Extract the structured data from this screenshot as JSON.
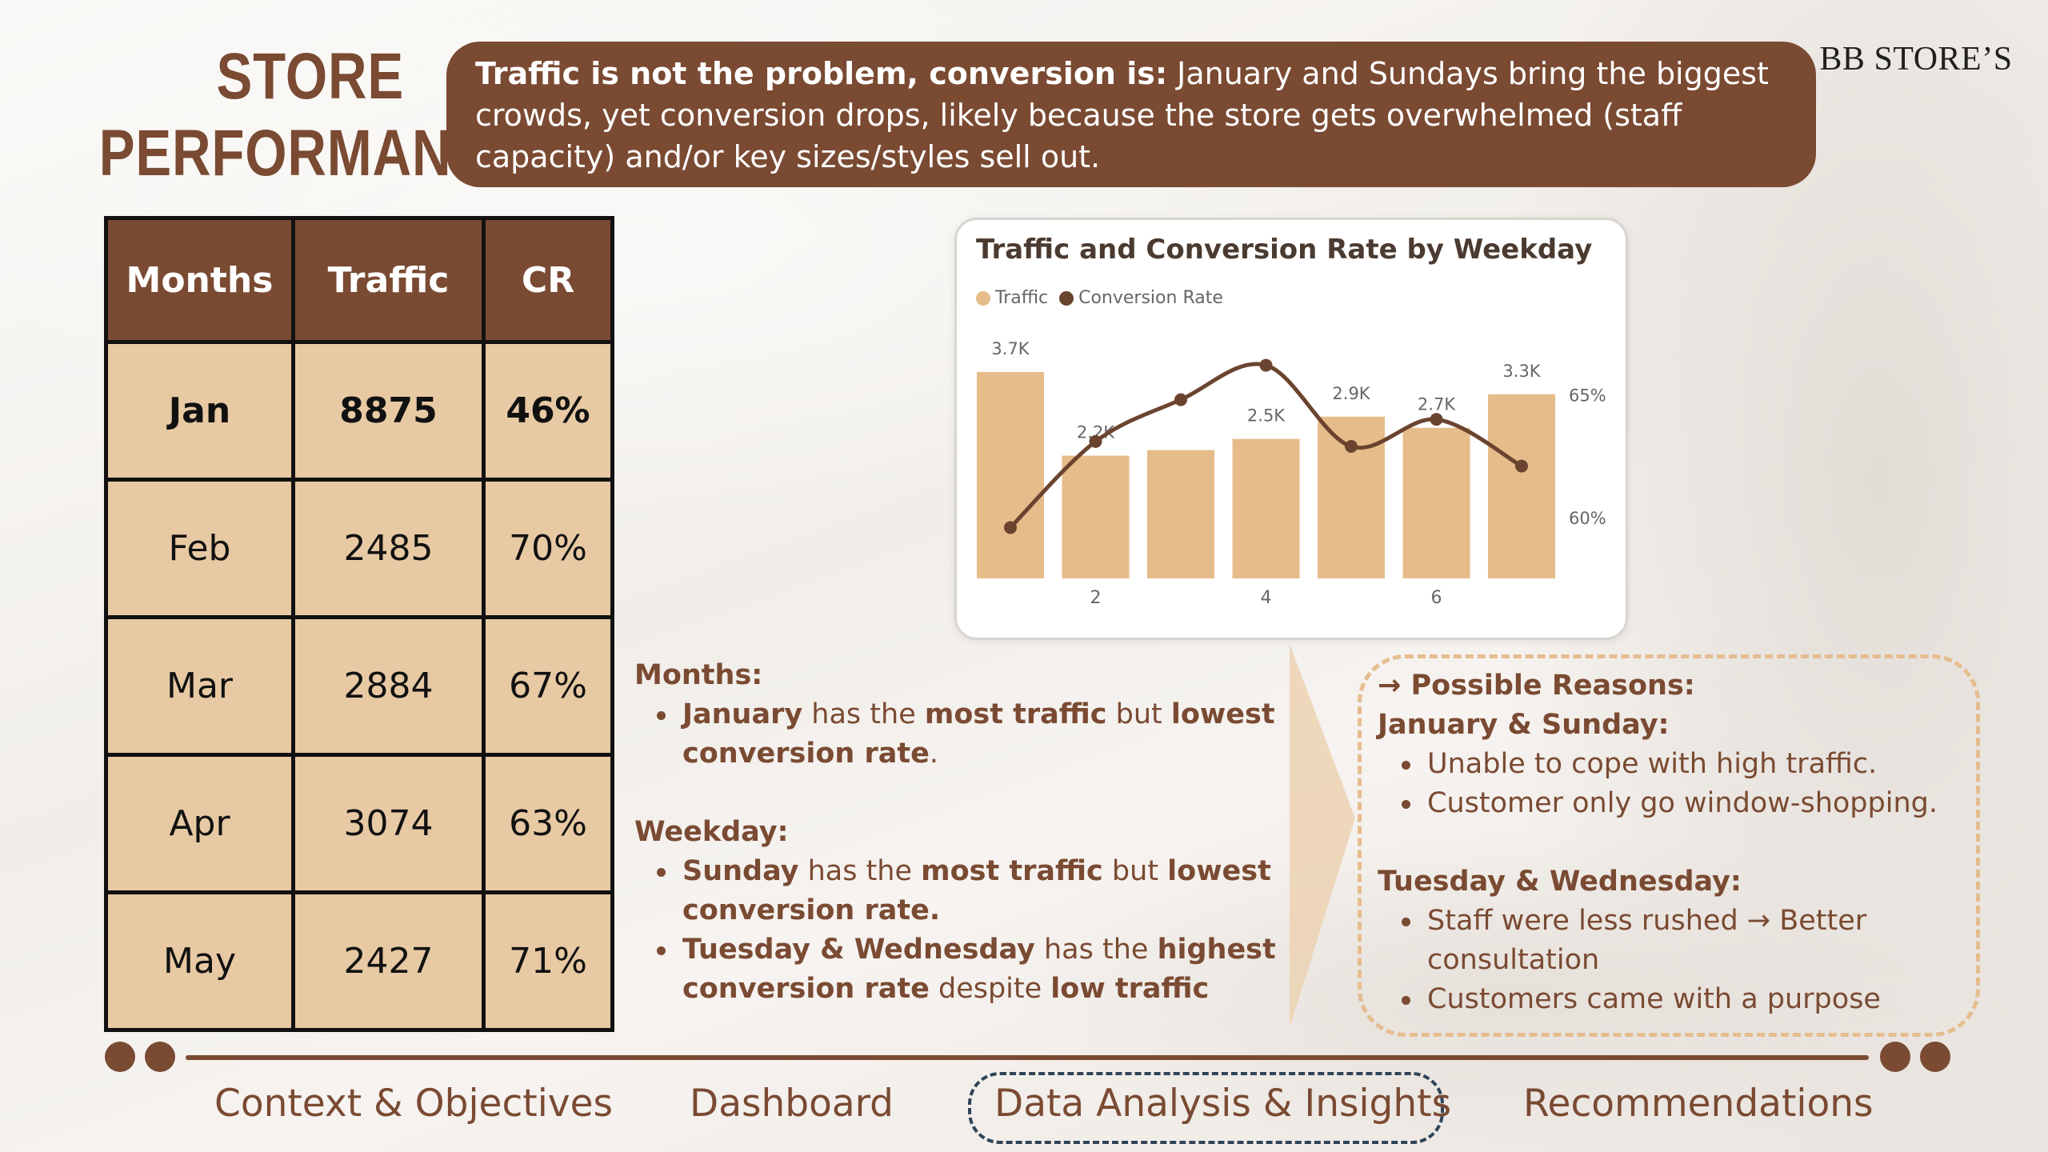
{
  "title": {
    "line1": "STORE",
    "line2": "PERFORMANCE"
  },
  "brand": "BB STORE’S",
  "banner": {
    "bold": "Traffic is not the problem, conversion is:",
    "text": " January and Sundays bring the biggest crowds, yet conversion drops, likely because the store gets overwhelmed (staff capacity) and/or key sizes/styles sell out."
  },
  "table": {
    "headers": [
      "Months",
      "Traffic",
      "CR"
    ],
    "rows": [
      [
        "Jan",
        "8875",
        "46%"
      ],
      [
        "Feb",
        "2485",
        "70%"
      ],
      [
        "Mar",
        "2884",
        "67%"
      ],
      [
        "Apr",
        "3074",
        "63%"
      ],
      [
        "May",
        "2427",
        "71%"
      ]
    ]
  },
  "chart_data": {
    "type": "bar",
    "title": "Traffic and Conversion Rate by Weekday",
    "legend": [
      "Traffic",
      "Conversion Rate"
    ],
    "legend_position": "top-left",
    "categories": [
      1,
      2,
      3,
      4,
      5,
      6,
      7
    ],
    "x_tick_labels": [
      "2",
      "4",
      "6"
    ],
    "series": [
      {
        "name": "Traffic",
        "type": "bar",
        "values": [
          3700,
          2200,
          2300,
          2500,
          2900,
          2700,
          3300
        ],
        "data_labels": [
          "3.7K",
          "2.2K",
          "",
          "2.5K",
          "2.9K",
          "2.7K",
          "3.3K"
        ]
      },
      {
        "name": "Conversion Rate",
        "type": "line",
        "axis": "right",
        "values": [
          59.6,
          63.1,
          64.8,
          66.2,
          62.9,
          64.0,
          62.1
        ]
      }
    ],
    "ylim_left": [
      0,
      4000
    ],
    "ylim_right": [
      57.5,
      67
    ],
    "right_tick_labels": [
      "65%",
      "60%"
    ],
    "grid": false,
    "colors": {
      "bar": "#e6bc8a",
      "line": "#6b4430"
    }
  },
  "insights": {
    "months_heading": "Months:",
    "months_bullet": [
      {
        "t": "January",
        "b": true
      },
      {
        "t": " has the ",
        "b": false
      },
      {
        "t": "most traffic",
        "b": true
      },
      {
        "t": " but ",
        "b": false
      },
      {
        "t": "lowest conversion rate",
        "b": true
      },
      {
        "t": ".",
        "b": false
      }
    ],
    "weekday_heading": "Weekday:",
    "weekday_bullet1": [
      {
        "t": "Sunday",
        "b": true
      },
      {
        "t": " has the ",
        "b": false
      },
      {
        "t": "most traffic",
        "b": true
      },
      {
        "t": " but ",
        "b": false
      },
      {
        "t": "lowest conversion rate.",
        "b": true
      }
    ],
    "weekday_bullet2": [
      {
        "t": "Tuesday & Wednesday",
        "b": true
      },
      {
        "t": " has the ",
        "b": false
      },
      {
        "t": "highest conversion rate",
        "b": true
      },
      {
        "t": " despite ",
        "b": false
      },
      {
        "t": "low traffic",
        "b": true
      }
    ]
  },
  "reasons": {
    "heading": "→ Possible Reasons:",
    "group1_title": "January & Sunday:",
    "group1_items": [
      "Unable to cope with high traffic.",
      "Customer only go window-shopping."
    ],
    "group2_title": "Tuesday & Wednesday:",
    "group2_items": [
      "Staff were less rushed → Better consultation",
      "Customers came with a purpose"
    ]
  },
  "nav": {
    "items": [
      "Context & Objectives",
      "Dashboard",
      "Data Analysis & Insights",
      "Recommendations"
    ],
    "active": "Data Analysis & Insights"
  },
  "colors": {
    "brown": "#7a4a32",
    "tan": "#e7c9a3",
    "bar": "#e6bc8a",
    "dashed_border": "#e5bd8e",
    "nav_active_border": "#2f4356"
  }
}
